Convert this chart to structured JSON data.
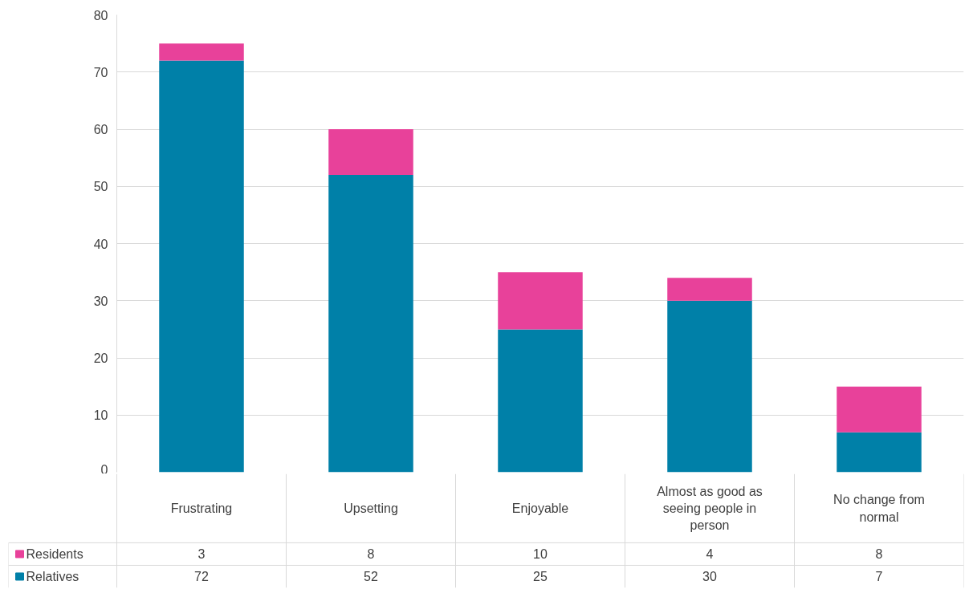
{
  "chart_data": {
    "type": "bar",
    "stacked": true,
    "categories": [
      "Frustrating",
      "Upsetting",
      "Enjoyable",
      "Almost as good as seeing people in person",
      "No change from normal"
    ],
    "series": [
      {
        "name": "Relatives",
        "color": "#0080a8",
        "values": [
          72,
          52,
          25,
          30,
          7
        ]
      },
      {
        "name": "Residents",
        "color": "#e8419a",
        "values": [
          3,
          8,
          10,
          4,
          8
        ]
      }
    ],
    "ylim": [
      0,
      80
    ],
    "yticks": [
      0,
      10,
      20,
      30,
      40,
      50,
      60,
      70,
      80
    ],
    "grid": "y",
    "legend": "bottom",
    "data_labels": true
  }
}
